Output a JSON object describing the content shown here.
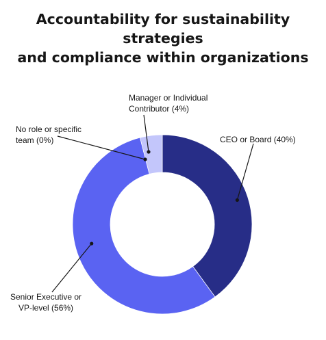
{
  "title_lines": [
    "Accountability for sustainability",
    "strategies",
    "and compliance within organizations"
  ],
  "chart_data": {
    "type": "pie",
    "variant": "donut",
    "title": "Accountability for sustainability strategies and compliance within organizations",
    "categories": [
      "CEO or Board",
      "Senior Executive or VP-level",
      "No role or specific team",
      "Manager or Individual Contributor"
    ],
    "values": [
      40,
      56,
      0,
      4
    ],
    "unit": "%",
    "colors": [
      "#272d87",
      "#5a63f2",
      "#5a63f2",
      "#c3c6fb"
    ],
    "labels": [
      {
        "lines": [
          "CEO or Board (40%)"
        ]
      },
      {
        "lines": [
          "Senior Executive or",
          "VP-level (56%)"
        ]
      },
      {
        "lines": [
          "No role or specific",
          "team (0%)"
        ]
      },
      {
        "lines": [
          "Manager or Individual",
          "Contributor (4%)"
        ]
      }
    ],
    "legend": "none",
    "grid": false
  }
}
